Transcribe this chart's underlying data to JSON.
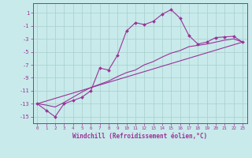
{
  "title": "",
  "xlabel": "Windchill (Refroidissement éolien,°C)",
  "bg_color": "#c8eaea",
  "grid_color": "#a8cece",
  "line_color": "#993399",
  "xlim": [
    -0.5,
    23.5
  ],
  "ylim": [
    -16,
    2.5
  ],
  "yticks": [
    1,
    -1,
    -3,
    -5,
    -7,
    -9,
    -11,
    -13,
    -15
  ],
  "xticks": [
    0,
    1,
    2,
    3,
    4,
    5,
    6,
    7,
    8,
    9,
    10,
    11,
    12,
    13,
    14,
    15,
    16,
    17,
    18,
    19,
    20,
    21,
    22,
    23
  ],
  "xtick_labels": [
    "0",
    "1",
    "2",
    "3",
    "4",
    "5",
    "6",
    "7",
    "8",
    "9",
    "10",
    "11",
    "12",
    "13",
    "14",
    "15",
    "16",
    "17",
    "18",
    "19",
    "20",
    "21",
    "22",
    "23"
  ],
  "line1_x": [
    0,
    1,
    2,
    3,
    4,
    5,
    6,
    7,
    8,
    9,
    10,
    11,
    12,
    13,
    14,
    15,
    16,
    17,
    18,
    19,
    20,
    21,
    22,
    23
  ],
  "line1_y": [
    -13,
    -14,
    -15,
    -13,
    -12.5,
    -12,
    -11,
    -7.5,
    -7.8,
    -5.5,
    -1.8,
    -0.5,
    -0.8,
    -0.3,
    0.8,
    1.5,
    0.2,
    -2.5,
    -3.8,
    -3.5,
    -2.8,
    -2.7,
    -2.6,
    -3.5
  ],
  "line2_x": [
    0,
    1,
    2,
    3,
    4,
    5,
    6,
    7,
    8,
    9,
    10,
    11,
    12,
    13,
    14,
    15,
    16,
    17,
    18,
    19,
    20,
    21,
    22,
    23
  ],
  "line2_y": [
    -13,
    -13.2,
    -13.5,
    -12.8,
    -12,
    -11.2,
    -10.5,
    -10,
    -9.5,
    -8.8,
    -8.2,
    -7.8,
    -7.0,
    -6.5,
    -5.8,
    -5.2,
    -4.8,
    -4.2,
    -4.0,
    -3.8,
    -3.5,
    -3.2,
    -3.0,
    -3.5
  ],
  "line3_x": [
    0,
    23
  ],
  "line3_y": [
    -13,
    -3.5
  ]
}
